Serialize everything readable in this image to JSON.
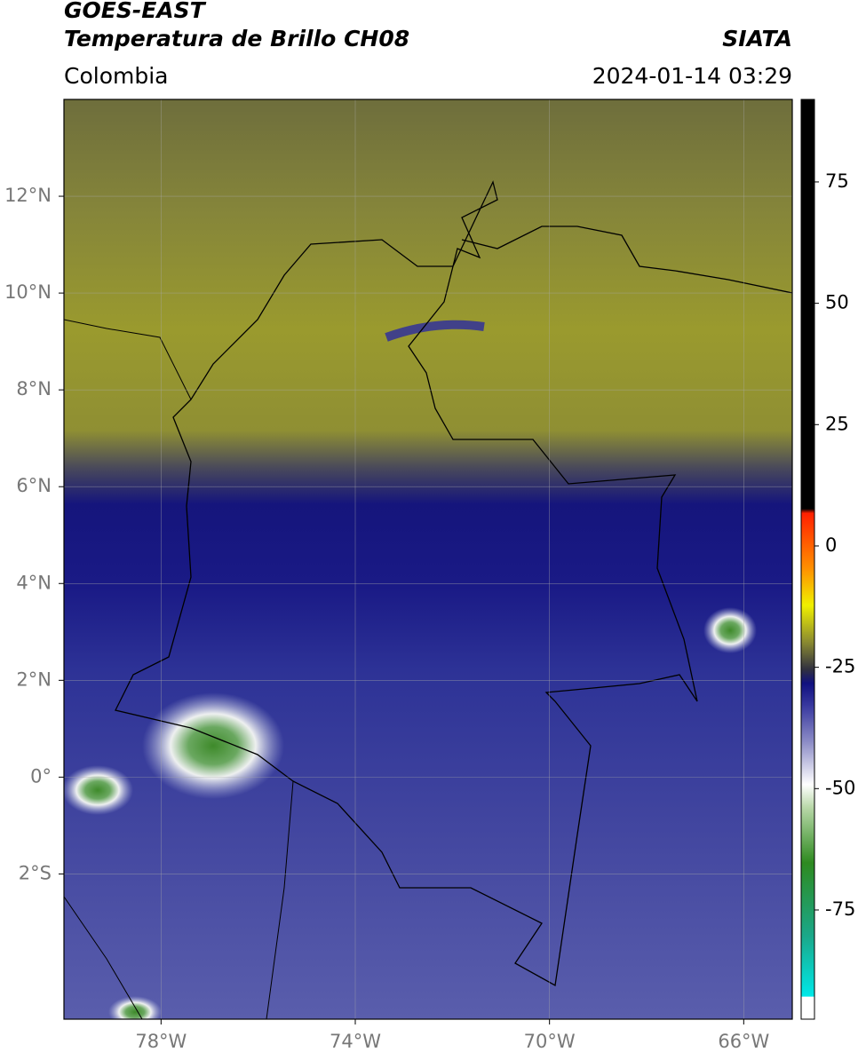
{
  "header": {
    "title": "GOES-EAST",
    "subtitle": "Temperatura de Brillo CH08",
    "region": "Colombia",
    "source": "SIATA",
    "datetime": "2024-01-14 03:29"
  },
  "map": {
    "xlim": [
      -80,
      -65
    ],
    "ylim": [
      -5,
      14
    ],
    "xticks": [
      {
        "value": -78,
        "label": "78°W"
      },
      {
        "value": -74,
        "label": "74°W"
      },
      {
        "value": -70,
        "label": "70°W"
      },
      {
        "value": -66,
        "label": "66°W"
      }
    ],
    "yticks": [
      {
        "value": 12,
        "label": "12°N"
      },
      {
        "value": 10,
        "label": "10°N"
      },
      {
        "value": 8,
        "label": "8°N"
      },
      {
        "value": 6,
        "label": "6°N"
      },
      {
        "value": 4,
        "label": "4°N"
      },
      {
        "value": 2,
        "label": "2°N"
      },
      {
        "value": 0,
        "label": "0°"
      },
      {
        "value": -2,
        "label": "2°S"
      }
    ],
    "grid": true
  },
  "colorbar": {
    "clim": [
      -97.5,
      92
    ],
    "ticks": [
      75,
      50,
      25,
      0,
      -25,
      -50,
      -75
    ]
  }
}
